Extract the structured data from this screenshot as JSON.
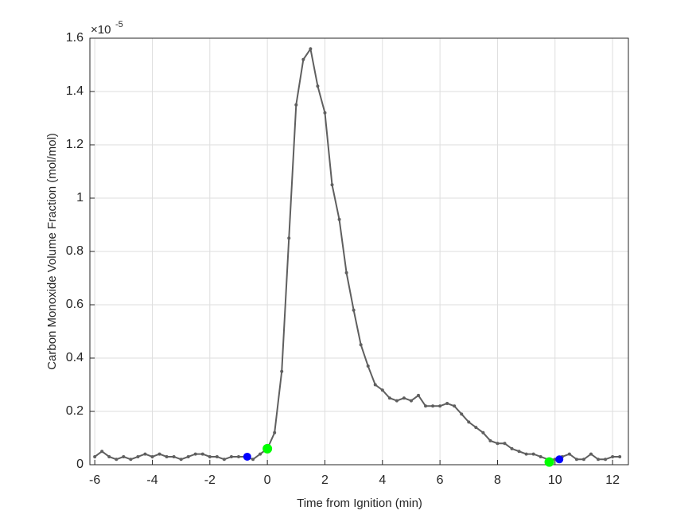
{
  "chart_data": {
    "type": "line",
    "xlabel": "Time from Ignition (min)",
    "ylabel": "Carbon Monoxide Volume Fraction (mol/mol)",
    "y_multiplier": "×10",
    "y_exponent": "-5",
    "xlim": [
      -6.17,
      12.55
    ],
    "ylim": [
      0,
      1.6
    ],
    "xticks": [
      -6,
      -4,
      -2,
      0,
      2,
      4,
      6,
      8,
      10,
      12
    ],
    "yticks": [
      0,
      0.2,
      0.4,
      0.6,
      0.8,
      1,
      1.2,
      1.4,
      1.6
    ],
    "grid": true,
    "x": [
      -6,
      -5.75,
      -5.5,
      -5.25,
      -5,
      -4.75,
      -4.5,
      -4.25,
      -4,
      -3.75,
      -3.5,
      -3.25,
      -3,
      -2.75,
      -2.5,
      -2.25,
      -2,
      -1.75,
      -1.5,
      -1.25,
      -1,
      -0.75,
      -0.5,
      -0.25,
      0,
      0.25,
      0.5,
      0.75,
      1,
      1.25,
      1.5,
      1.75,
      2,
      2.25,
      2.5,
      2.75,
      3,
      3.25,
      3.5,
      3.75,
      4,
      4.25,
      4.5,
      4.75,
      5,
      5.25,
      5.5,
      5.75,
      6,
      6.25,
      6.5,
      6.75,
      7,
      7.25,
      7.5,
      7.75,
      8,
      8.25,
      8.5,
      8.75,
      9,
      9.25,
      9.5,
      9.75,
      10,
      10.25,
      10.5,
      10.75,
      11,
      11.25,
      11.5,
      11.75,
      12,
      12.25
    ],
    "series": [
      {
        "color": "#5f5f5f",
        "values": [
          0.03,
          0.05,
          0.03,
          0.02,
          0.03,
          0.02,
          0.03,
          0.04,
          0.03,
          0.04,
          0.03,
          0.03,
          0.02,
          0.03,
          0.04,
          0.04,
          0.03,
          0.03,
          0.02,
          0.03,
          0.03,
          0.03,
          0.02,
          0.04,
          0.06,
          0.12,
          0.35,
          0.85,
          1.35,
          1.52,
          1.56,
          1.42,
          1.32,
          1.05,
          0.92,
          0.72,
          0.58,
          0.45,
          0.37,
          0.3,
          0.28,
          0.25,
          0.24,
          0.25,
          0.24,
          0.26,
          0.22,
          0.22,
          0.22,
          0.23,
          0.22,
          0.19,
          0.16,
          0.14,
          0.12,
          0.09,
          0.08,
          0.08,
          0.06,
          0.05,
          0.04,
          0.04,
          0.03,
          0.02,
          0.02,
          0.03,
          0.04,
          0.02,
          0.02,
          0.04,
          0.02,
          0.02,
          0.03,
          0.03
        ]
      }
    ],
    "markers": [
      {
        "color": "#00ff00",
        "x": [
          0,
          9.8
        ],
        "y": [
          0.06,
          0.01
        ]
      },
      {
        "color": "#0000ff",
        "x": [
          -0.7,
          10.15
        ],
        "y": [
          0.03,
          0.02
        ]
      }
    ]
  }
}
